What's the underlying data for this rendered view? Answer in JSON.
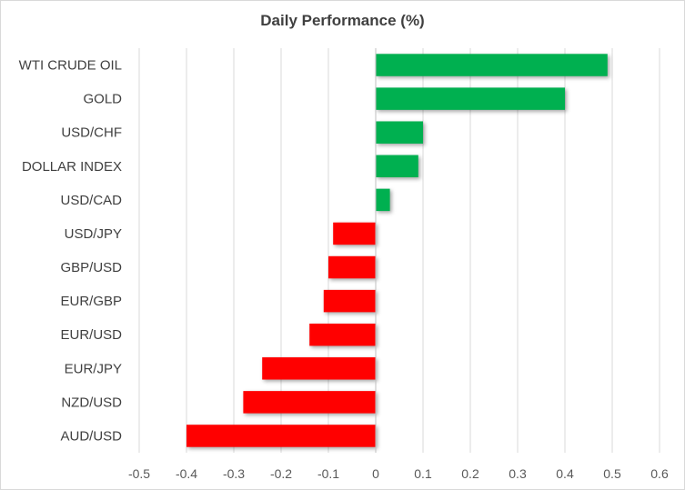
{
  "chart_data": {
    "type": "bar",
    "orientation": "horizontal",
    "title": "Daily Performance (%)",
    "xlabel": "",
    "ylabel": "",
    "categories": [
      "WTI CRUDE OIL",
      "GOLD",
      "USD/CHF",
      "DOLLAR INDEX",
      "USD/CAD",
      "USD/JPY",
      "GBP/USD",
      "EUR/GBP",
      "EUR/USD",
      "EUR/JPY",
      "NZD/USD",
      "AUD/USD"
    ],
    "values": [
      0.49,
      0.4,
      0.1,
      0.09,
      0.03,
      -0.09,
      -0.1,
      -0.11,
      -0.14,
      -0.24,
      -0.28,
      -0.4
    ],
    "xlim": [
      -0.5,
      0.6
    ],
    "xticks": [
      "-0.5",
      "-0.4",
      "-0.3",
      "-0.2",
      "-0.1",
      "0",
      "0.1",
      "0.2",
      "0.3",
      "0.4",
      "0.5",
      "0.6"
    ],
    "grid": true,
    "legend": "none",
    "colors": {
      "positive": "#00b050",
      "negative": "#ff0000"
    }
  }
}
